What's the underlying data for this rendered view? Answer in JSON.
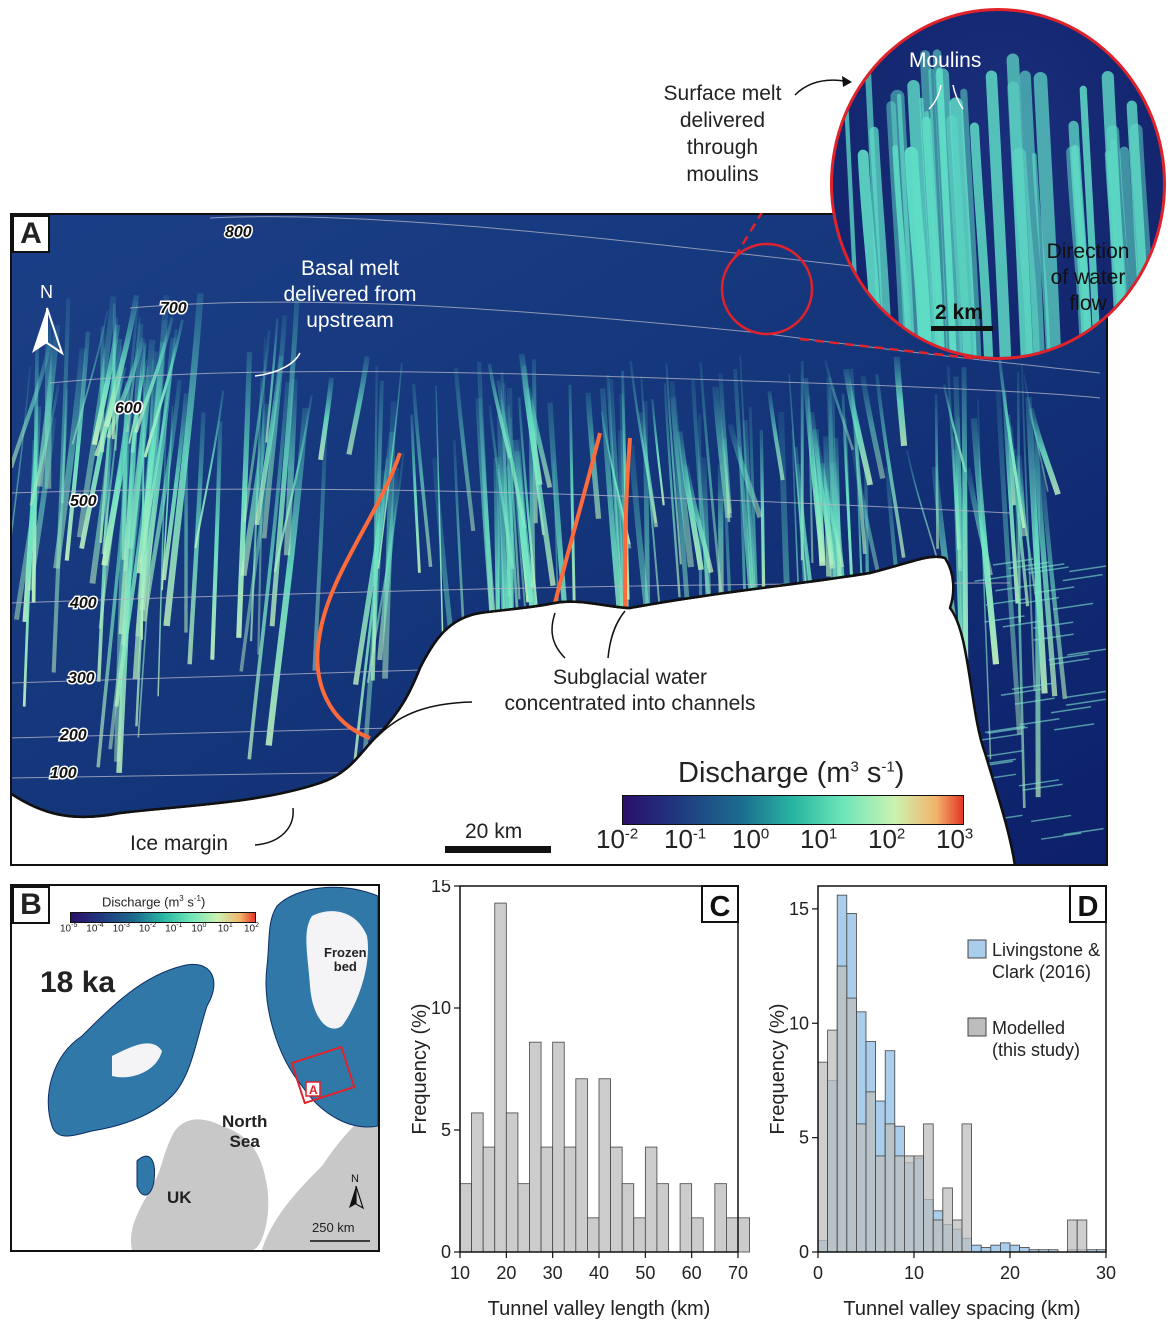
{
  "panel_a": {
    "label": "A",
    "contours": [
      "800",
      "700",
      "600",
      "500",
      "400",
      "300",
      "200",
      "100"
    ],
    "annotations": {
      "basal_melt": [
        "Basal melt",
        "delivered from",
        "upstream"
      ],
      "surface_melt": [
        "Surface melt",
        "delivered",
        "through",
        "moulins"
      ],
      "channels": [
        "Subglacial water",
        "concentrated into channels"
      ],
      "ice_margin": "Ice margin",
      "moulins": "Moulins",
      "direction": [
        "Direction",
        "of water",
        "flow"
      ]
    },
    "scale_main": "20 km",
    "scale_inset": "2 km",
    "north": "N",
    "colorbar": {
      "title": "Discharge (m",
      "title_sup1": "3",
      "title_mid": " s",
      "title_sup2": "-1",
      "title_end": ")",
      "ticks": [
        {
          "base": "10",
          "exp": "-2"
        },
        {
          "base": "10",
          "exp": "-1"
        },
        {
          "base": "10",
          "exp": "0"
        },
        {
          "base": "10",
          "exp": "1"
        },
        {
          "base": "10",
          "exp": "2"
        },
        {
          "base": "10",
          "exp": "3"
        }
      ]
    }
  },
  "panel_b": {
    "label": "B",
    "age": "18 ka",
    "frozen_bed": [
      "Frozen",
      "bed"
    ],
    "sea": [
      "North",
      "Sea"
    ],
    "uk": "UK",
    "north": "N",
    "scale": "250 km",
    "box_label": "A",
    "colorbar": {
      "title": "Discharge (m",
      "title_sup1": "3",
      "title_mid": " s",
      "title_sup2": "-1",
      "title_end": ")",
      "ticks": [
        {
          "base": "10",
          "exp": "-5"
        },
        {
          "base": "10",
          "exp": "-4"
        },
        {
          "base": "10",
          "exp": "-3"
        },
        {
          "base": "10",
          "exp": "-2"
        },
        {
          "base": "10",
          "exp": "-1"
        },
        {
          "base": "10",
          "exp": "0"
        },
        {
          "base": "10",
          "exp": "1"
        },
        {
          "base": "10",
          "exp": "2"
        }
      ]
    }
  },
  "chart_data": [
    {
      "panel": "C",
      "type": "bar",
      "xlabel": "Tunnel valley length (km)",
      "ylabel": "Frequency (%)",
      "xlim": [
        10,
        70
      ],
      "ylim": [
        0,
        15
      ],
      "xticks": [
        10,
        20,
        30,
        40,
        50,
        60,
        70
      ],
      "yticks": [
        0,
        5,
        10,
        15
      ],
      "bin_width": 2.5,
      "series": [
        {
          "color": "#cccccc",
          "bins": [
            [
              10,
              2.8
            ],
            [
              12.5,
              5.7
            ],
            [
              15,
              4.3
            ],
            [
              17.5,
              14.3
            ],
            [
              20,
              5.7
            ],
            [
              22.5,
              2.8
            ],
            [
              25,
              8.6
            ],
            [
              27.5,
              4.3
            ],
            [
              30,
              8.6
            ],
            [
              32.5,
              4.3
            ],
            [
              35,
              7.1
            ],
            [
              37.5,
              1.4
            ],
            [
              40,
              7.1
            ],
            [
              42.5,
              4.3
            ],
            [
              45,
              2.8
            ],
            [
              47.5,
              1.4
            ],
            [
              50,
              4.3
            ],
            [
              52.5,
              2.8
            ],
            [
              55,
              0
            ],
            [
              57.5,
              2.8
            ],
            [
              60,
              1.4
            ],
            [
              62.5,
              0
            ],
            [
              65,
              2.8
            ],
            [
              67.5,
              1.4
            ],
            [
              70,
              1.4
            ]
          ]
        }
      ]
    },
    {
      "panel": "D",
      "type": "bar",
      "xlabel": "Tunnel valley spacing (km)",
      "ylabel": "Frequency (%)",
      "xlim": [
        0,
        30
      ],
      "ylim": [
        0,
        16
      ],
      "xticks": [
        0,
        10,
        20,
        30
      ],
      "yticks": [
        0,
        5,
        10,
        15
      ],
      "bin_width": 1,
      "series": [
        {
          "name": "Livingstone & Clark (2016)",
          "color": "#a9cdea",
          "bins": [
            [
              0,
              0.5
            ],
            [
              1,
              7.5
            ],
            [
              2,
              15.6
            ],
            [
              3,
              14.8
            ],
            [
              4,
              10.5
            ],
            [
              5,
              9.2
            ],
            [
              6,
              6.6
            ],
            [
              7,
              8.8
            ],
            [
              8,
              5.5
            ],
            [
              9,
              3.9
            ],
            [
              10,
              4.1
            ],
            [
              11,
              2.3
            ],
            [
              12,
              1.8
            ],
            [
              13,
              1.2
            ],
            [
              14,
              1.0
            ],
            [
              15,
              0.6
            ],
            [
              16,
              0.3
            ],
            [
              17,
              0.2
            ],
            [
              18,
              0.3
            ],
            [
              19,
              0.4
            ],
            [
              20,
              0.3
            ],
            [
              21,
              0.2
            ],
            [
              22,
              0.1
            ],
            [
              23,
              0.1
            ],
            [
              24,
              0.1
            ],
            [
              26,
              0.1
            ],
            [
              27,
              0.1
            ],
            [
              28,
              0.1
            ],
            [
              29,
              0.1
            ]
          ]
        },
        {
          "name": "Modelled (this study)",
          "color": "#bdbdbd",
          "bins": [
            [
              0,
              8.3
            ],
            [
              1,
              9.7
            ],
            [
              2,
              12.5
            ],
            [
              3,
              11.1
            ],
            [
              4,
              5.6
            ],
            [
              5,
              7.0
            ],
            [
              6,
              4.2
            ],
            [
              7,
              5.6
            ],
            [
              8,
              4.2
            ],
            [
              9,
              4.2
            ],
            [
              10,
              4.2
            ],
            [
              11,
              5.6
            ],
            [
              12,
              1.4
            ],
            [
              13,
              2.8
            ],
            [
              14,
              1.4
            ],
            [
              15,
              5.6
            ],
            [
              16,
              0
            ],
            [
              17,
              0
            ],
            [
              26,
              1.4
            ],
            [
              27,
              1.4
            ]
          ]
        }
      ]
    }
  ]
}
